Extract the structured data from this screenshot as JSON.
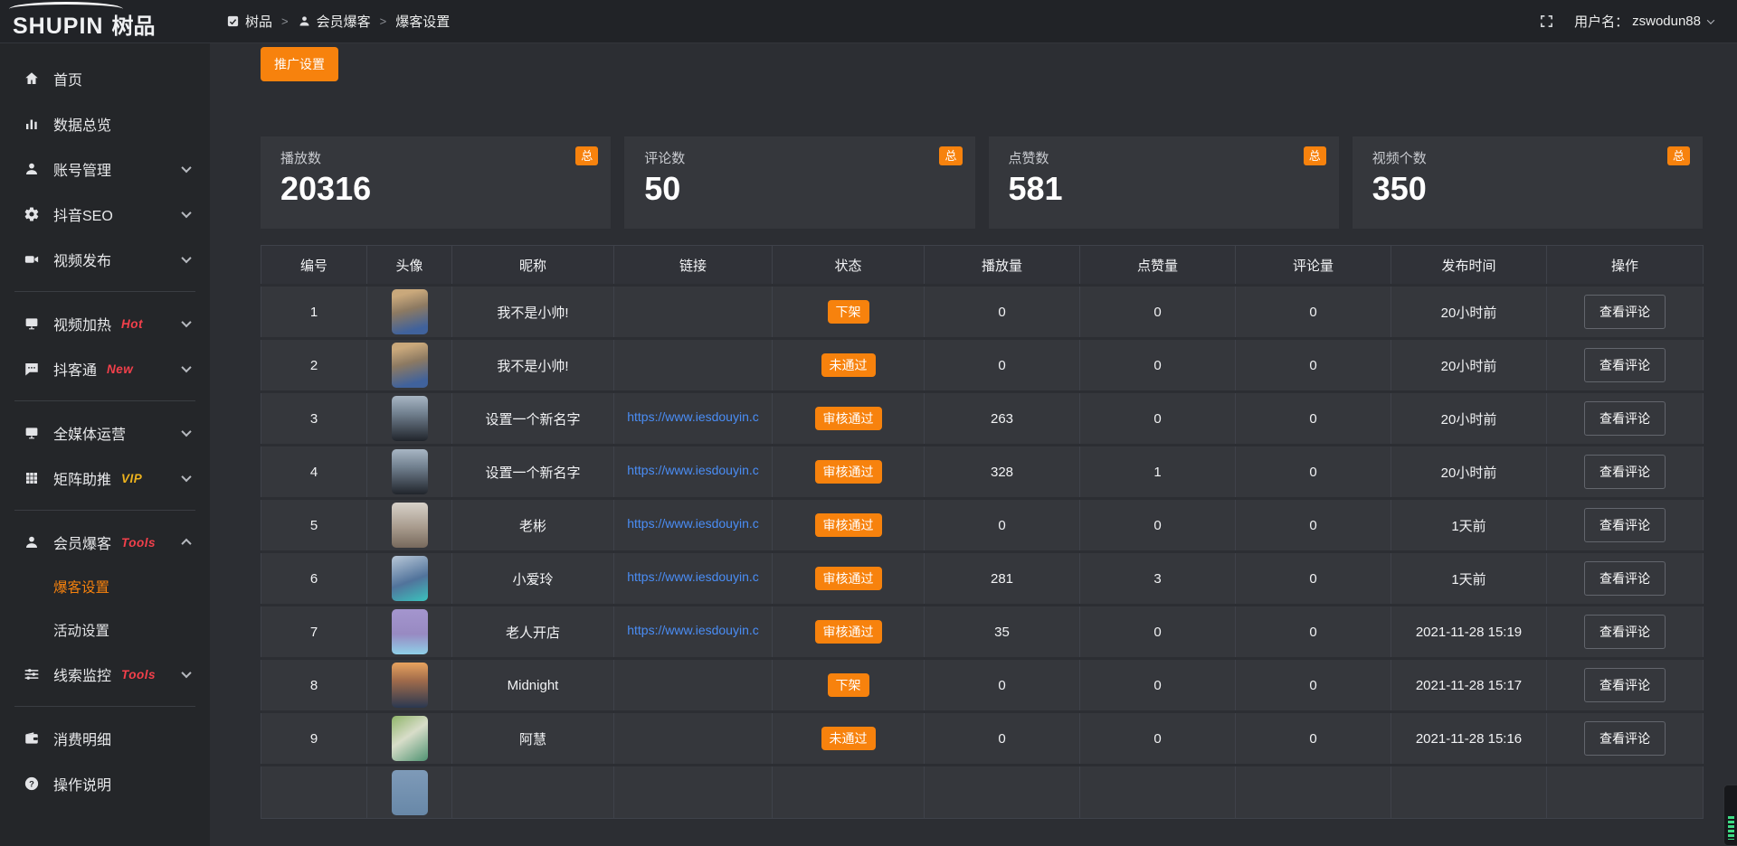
{
  "topbar": {
    "logo_text": "SHUPIN",
    "logo_cn": "树品",
    "separator": ">",
    "breadcrumb": [
      {
        "label": "树品",
        "icon": "app-icon"
      },
      {
        "label": "会员爆客",
        "icon": "user-icon"
      },
      {
        "label": "爆客设置",
        "icon": ""
      }
    ],
    "username_label": "用户名：",
    "username": "zswodun88"
  },
  "sidebar": {
    "groups": [
      {
        "items": [
          {
            "name": "home",
            "label": "首页",
            "icon": "home-icon"
          },
          {
            "name": "data-overview",
            "label": "数据总览",
            "icon": "chart-icon"
          },
          {
            "name": "account-management",
            "label": "账号管理",
            "icon": "user-icon",
            "chevron": "down"
          },
          {
            "name": "douyin-seo",
            "label": "抖音SEO",
            "icon": "gear-icon",
            "chevron": "down"
          },
          {
            "name": "video-publish",
            "label": "视频发布",
            "icon": "video-icon",
            "chevron": "down"
          }
        ]
      },
      {
        "items": [
          {
            "name": "video-heat",
            "label": "视频加热",
            "icon": "screen-icon",
            "tag": "Hot",
            "tag_color": "#f3404b",
            "chevron": "down"
          },
          {
            "name": "douketong",
            "label": "抖客通",
            "icon": "chat-icon",
            "tag": "New",
            "tag_color": "#f3404b",
            "chevron": "down"
          }
        ]
      },
      {
        "items": [
          {
            "name": "media-operation",
            "label": "全媒体运营",
            "icon": "monitor-icon",
            "chevron": "down"
          },
          {
            "name": "matrix-boost",
            "label": "矩阵助推",
            "icon": "grid-icon",
            "tag": "VIP",
            "tag_color": "#eeb31d",
            "chevron": "down"
          }
        ]
      },
      {
        "items": [
          {
            "name": "member-baoke",
            "label": "会员爆客",
            "icon": "user-icon",
            "tag": "Tools",
            "tag_color": "#f3404b",
            "chevron": "up",
            "children": [
              {
                "name": "baoke-settings",
                "label": "爆客设置",
                "active": true
              },
              {
                "name": "activity-settings",
                "label": "活动设置"
              }
            ]
          },
          {
            "name": "clue-monitor",
            "label": "线索监控",
            "icon": "sliders-icon",
            "tag": "Tools",
            "tag_color": "#f3404b",
            "chevron": "down"
          }
        ]
      },
      {
        "items": [
          {
            "name": "consume-detail",
            "label": "消费明细",
            "icon": "wallet-icon"
          },
          {
            "name": "operation-guide",
            "label": "操作说明",
            "icon": "help-icon"
          }
        ]
      }
    ]
  },
  "toolbar": {
    "promo_button": "推广设置"
  },
  "stats": {
    "badge": "总",
    "cards": [
      {
        "label": "播放数",
        "value": "20316"
      },
      {
        "label": "评论数",
        "value": "50"
      },
      {
        "label": "点赞数",
        "value": "581"
      },
      {
        "label": "视频个数",
        "value": "350"
      }
    ]
  },
  "table": {
    "headers": [
      "编号",
      "头像",
      "昵称",
      "链接",
      "状态",
      "播放量",
      "点赞量",
      "评论量",
      "发布时间",
      "操作"
    ],
    "action_label": "查看评论",
    "rows": [
      {
        "no": "1",
        "nickname": "我不是小帅!",
        "link": "",
        "status": "下架",
        "plays": "0",
        "likes": "0",
        "comments": "0",
        "time": "20小时前",
        "avatar": "linear-gradient(165deg,#c9a87b 15%,#8d7a62 45%,#40629c 85%)"
      },
      {
        "no": "2",
        "nickname": "我不是小帅!",
        "link": "",
        "status": "未通过",
        "plays": "0",
        "likes": "0",
        "comments": "0",
        "time": "20小时前",
        "avatar": "linear-gradient(165deg,#c9a87b 15%,#8d7a62 45%,#40629c 85%)"
      },
      {
        "no": "3",
        "nickname": "设置一个新名字",
        "link": "https://www.iesdouyin.c",
        "status": "审核通过",
        "plays": "263",
        "likes": "0",
        "comments": "0",
        "time": "20小时前",
        "avatar": "linear-gradient(180deg,#a8b6c4 0%,#707f8e 40%,#20242b 100%)"
      },
      {
        "no": "4",
        "nickname": "设置一个新名字",
        "link": "https://www.iesdouyin.c",
        "status": "审核通过",
        "plays": "328",
        "likes": "1",
        "comments": "0",
        "time": "20小时前",
        "avatar": "linear-gradient(180deg,#a8b6c4 0%,#707f8e 40%,#20242b 100%)"
      },
      {
        "no": "5",
        "nickname": "老彬",
        "link": "https://www.iesdouyin.c",
        "status": "审核通过",
        "plays": "0",
        "likes": "0",
        "comments": "0",
        "time": "1天前",
        "avatar": "linear-gradient(180deg,#d8d2ca 0%,#a89b8d 55%,#77695c 100%)"
      },
      {
        "no": "6",
        "nickname": "小爱玲",
        "link": "https://www.iesdouyin.c",
        "status": "审核通过",
        "plays": "281",
        "likes": "3",
        "comments": "0",
        "time": "1天前",
        "avatar": "linear-gradient(160deg,#b9c8d8 0%,#51739b 55%,#3bc3bd 100%)"
      },
      {
        "no": "7",
        "nickname": "老人开店",
        "link": "https://www.iesdouyin.c",
        "status": "审核通过",
        "plays": "35",
        "likes": "0",
        "comments": "0",
        "time": "2021-11-28 15:19",
        "avatar": "linear-gradient(180deg,#a495ce 0%,#988ac2 55%,#8fd0e8 100%)"
      },
      {
        "no": "8",
        "nickname": "Midnight",
        "link": "",
        "status": "下架",
        "plays": "0",
        "likes": "0",
        "comments": "0",
        "time": "2021-11-28 15:17",
        "avatar": "linear-gradient(180deg,#e8a35f 0%,#a06b4b 40%,#2a3850 100%)"
      },
      {
        "no": "9",
        "nickname": "阿慧",
        "link": "",
        "status": "未通过",
        "plays": "0",
        "likes": "0",
        "comments": "0",
        "time": "2021-11-28 15:16",
        "avatar": "linear-gradient(145deg,#8fb469 0%,#d8ddc9 45%,#4f9372 100%)"
      },
      {
        "no": "",
        "nickname": "",
        "link": "",
        "status": "",
        "plays": "",
        "likes": "",
        "comments": "",
        "time": "",
        "avatar": "linear-gradient(180deg,#7e9ab8,#6888a8)",
        "partial": true
      }
    ]
  },
  "colors": {
    "accent": "#f7820d",
    "link": "#4a8df5",
    "tag-hot": "#f3404b",
    "tag-vip": "#eeb31d",
    "widget-green": "#3ddc84"
  }
}
